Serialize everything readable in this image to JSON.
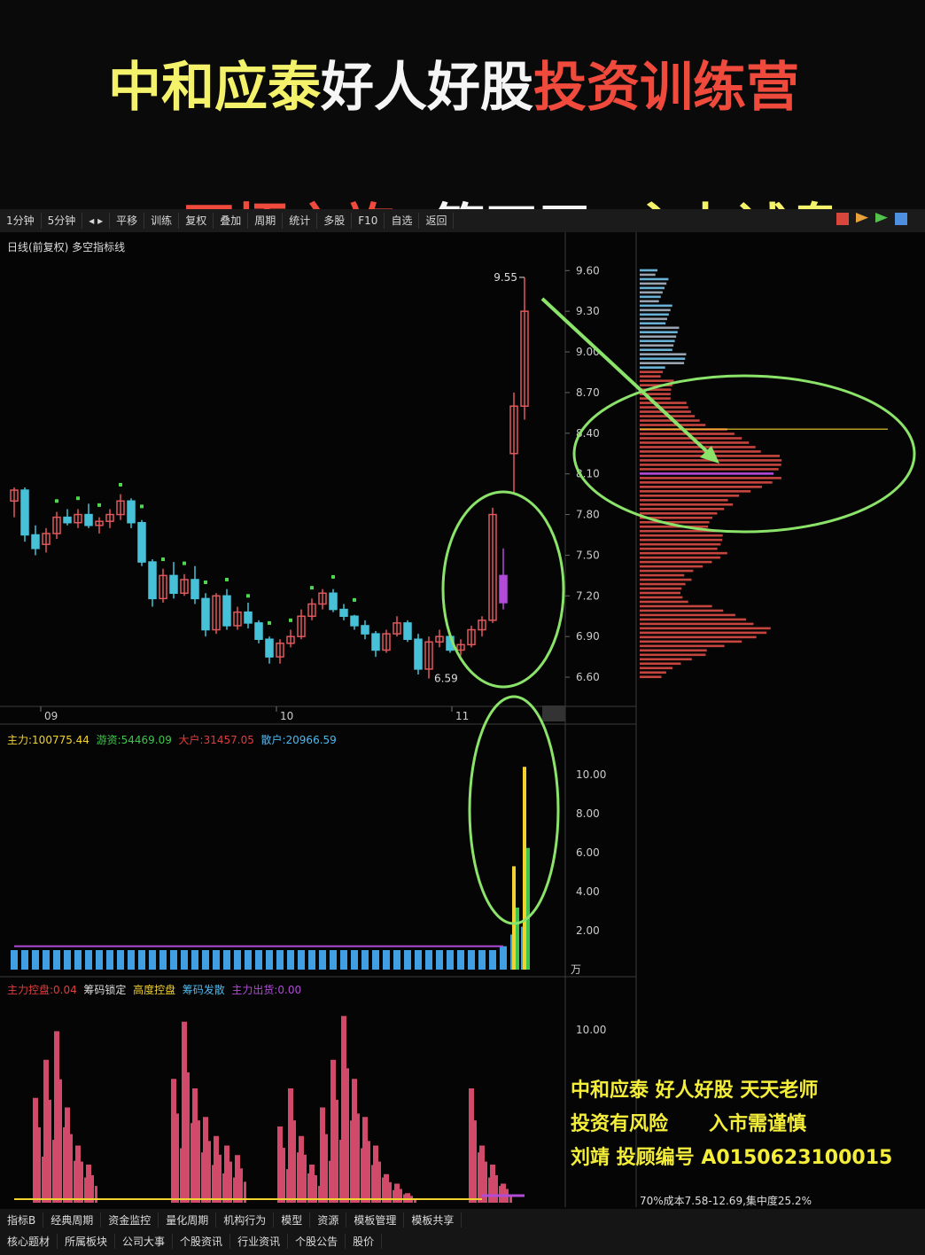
{
  "banner": {
    "line1": [
      {
        "text": "中和应泰",
        "color": "y"
      },
      {
        "text": "好人好股",
        "color": "w"
      },
      {
        "text": "投资训练营",
        "color": "r"
      }
    ],
    "line2": [
      {
        "text": "开悟之旅",
        "color": "r"
      },
      {
        "text": "  第四天  ",
        "color": "w"
      },
      {
        "text": "主力试盘",
        "color": "y"
      }
    ]
  },
  "toolbar": {
    "items": [
      "1分钟",
      "5分钟",
      "◂ ▸",
      "平移",
      "训练",
      "复权",
      "叠加",
      "周期",
      "统计",
      "多股",
      "F10",
      "自选",
      "返回"
    ]
  },
  "main_chart": {
    "title": "日线(前复权) 多空指标线",
    "high_label": "9.55",
    "low_label": "6.59",
    "date_labels": [
      "09",
      "10",
      "11"
    ],
    "price_axis": [
      "9.60",
      "9.30",
      "9.00",
      "8.70",
      "8.40",
      "8.10",
      "7.80",
      "7.50",
      "7.20",
      "6.90",
      "6.60"
    ]
  },
  "fund_panel": {
    "legend": [
      {
        "text": "主力:100775.44",
        "color": "#f2d22e"
      },
      {
        "text": "游资:54469.09",
        "color": "#3ec64a"
      },
      {
        "text": "大户:31457.05",
        "color": "#e23c3c"
      },
      {
        "text": "散户:20966.59",
        "color": "#4fb8ef"
      }
    ],
    "axis": [
      "10.00",
      "8.00",
      "6.00",
      "4.00",
      "2.00"
    ],
    "unit": "万"
  },
  "lower_panel": {
    "legend": [
      {
        "text": "主力控盘:0.04",
        "color": "#e23c3c"
      },
      {
        "text": "筹码锁定",
        "color": "#ddd"
      },
      {
        "text": "高度控盘",
        "color": "#f2d22e"
      },
      {
        "text": "筹码发散",
        "color": "#4fb8ef"
      },
      {
        "text": "主力出货:0.00",
        "color": "#b14bd8"
      }
    ],
    "axis": [
      "10.00"
    ]
  },
  "chip_info": "70%成本7.58-12.69,集中度25.2%",
  "footer": {
    "line1": "中和应泰  好人好股  天天老师",
    "line2": "投资有风险      入市需谨慎",
    "line3": "刘靖 投顾编号 A0150623100015"
  },
  "bottom_tabs_row1": [
    "指标B",
    "经典周期",
    "资金监控",
    "量化周期",
    "机构行为",
    "模型",
    "资源",
    "模板管理",
    "模板共享"
  ],
  "bottom_tabs_row2": [
    "核心题材",
    "所属板块",
    "公司大事",
    "个股资讯",
    "行业资讯",
    "个股公告",
    "股价"
  ],
  "colors": {
    "up": "#e0585c",
    "down": "#46c1d8",
    "support": "#4ed84e",
    "annotation": "#8be36a"
  },
  "chart_data": {
    "type": "candlestick",
    "title": "",
    "ylim": [
      6.45,
      9.7
    ],
    "candles": [
      [
        7.9,
        8.0,
        7.78,
        7.98
      ],
      [
        7.98,
        8.0,
        7.6,
        7.65
      ],
      [
        7.65,
        7.72,
        7.5,
        7.55
      ],
      [
        7.58,
        7.7,
        7.52,
        7.66
      ],
      [
        7.66,
        7.82,
        7.62,
        7.78
      ],
      [
        7.78,
        7.84,
        7.72,
        7.74
      ],
      [
        7.74,
        7.84,
        7.7,
        7.8
      ],
      [
        7.8,
        7.88,
        7.7,
        7.72
      ],
      [
        7.72,
        7.78,
        7.66,
        7.75
      ],
      [
        7.75,
        7.84,
        7.7,
        7.8
      ],
      [
        7.8,
        7.95,
        7.76,
        7.9
      ],
      [
        7.9,
        7.92,
        7.7,
        7.74
      ],
      [
        7.74,
        7.76,
        7.42,
        7.45
      ],
      [
        7.45,
        7.47,
        7.12,
        7.18
      ],
      [
        7.18,
        7.4,
        7.15,
        7.35
      ],
      [
        7.35,
        7.45,
        7.18,
        7.22
      ],
      [
        7.22,
        7.36,
        7.2,
        7.32
      ],
      [
        7.32,
        7.42,
        7.14,
        7.18
      ],
      [
        7.18,
        7.22,
        6.9,
        6.95
      ],
      [
        6.95,
        7.22,
        6.92,
        7.2
      ],
      [
        7.2,
        7.25,
        6.95,
        6.98
      ],
      [
        6.98,
        7.12,
        6.95,
        7.08
      ],
      [
        7.08,
        7.15,
        6.96,
        7.0
      ],
      [
        7.0,
        7.02,
        6.85,
        6.88
      ],
      [
        6.88,
        6.9,
        6.7,
        6.75
      ],
      [
        6.75,
        6.88,
        6.7,
        6.85
      ],
      [
        6.85,
        6.95,
        6.82,
        6.9
      ],
      [
        6.9,
        7.1,
        6.88,
        7.05
      ],
      [
        7.05,
        7.18,
        7.02,
        7.14
      ],
      [
        7.14,
        7.25,
        7.1,
        7.22
      ],
      [
        7.22,
        7.25,
        7.08,
        7.1
      ],
      [
        7.1,
        7.14,
        7.02,
        7.05
      ],
      [
        7.05,
        7.06,
        6.95,
        6.98
      ],
      [
        6.98,
        7.02,
        6.88,
        6.92
      ],
      [
        6.92,
        6.94,
        6.75,
        6.8
      ],
      [
        6.8,
        6.95,
        6.78,
        6.92
      ],
      [
        6.92,
        7.05,
        6.9,
        7.0
      ],
      [
        7.0,
        7.02,
        6.86,
        6.88
      ],
      [
        6.88,
        6.92,
        6.62,
        6.66
      ],
      [
        6.66,
        6.9,
        6.59,
        6.86
      ],
      [
        6.86,
        6.95,
        6.82,
        6.9
      ],
      [
        6.9,
        6.92,
        6.78,
        6.8
      ],
      [
        6.8,
        6.88,
        6.76,
        6.84
      ],
      [
        6.84,
        6.98,
        6.82,
        6.95
      ],
      [
        6.95,
        7.05,
        6.9,
        7.02
      ],
      [
        7.02,
        7.85,
        7.0,
        7.8
      ],
      [
        7.35,
        7.55,
        7.1,
        7.15
      ],
      [
        8.25,
        8.7,
        7.95,
        8.6
      ],
      [
        8.6,
        9.55,
        8.5,
        9.3
      ]
    ],
    "fund_volume": [
      1.0,
      1.0,
      1.0,
      1.0,
      1.0,
      1.0,
      1.0,
      1.0,
      1.0,
      1.0,
      1.0,
      1.0,
      1.0,
      1.0,
      1.0,
      1.0,
      1.0,
      1.0,
      1.0,
      1.0,
      1.0,
      1.0,
      1.0,
      1.0,
      1.0,
      1.0,
      1.0,
      1.0,
      1.0,
      1.0,
      1.0,
      1.0,
      1.0,
      1.0,
      1.0,
      1.0,
      1.0,
      1.0,
      1.0,
      1.0,
      1.0,
      1.0,
      1.0,
      1.0,
      1.0,
      1.0,
      1.2,
      1.8,
      2.2
    ],
    "fund_main": [
      0,
      0,
      0,
      0,
      0,
      0,
      0,
      0,
      0,
      0,
      0,
      0,
      0,
      0,
      0,
      0,
      0,
      0,
      0,
      0,
      0,
      0,
      0,
      0,
      0,
      0,
      0,
      0,
      0,
      0,
      0,
      0,
      0,
      0,
      0,
      0,
      0,
      0,
      0,
      0,
      0,
      0,
      0,
      0,
      0,
      0,
      0,
      5.3,
      10.4
    ],
    "control": [
      0,
      0,
      0.55,
      0.75,
      0.9,
      0.5,
      0.3,
      0.2,
      0,
      0,
      0,
      0,
      0,
      0,
      0,
      0.65,
      0.95,
      0.6,
      0.45,
      0.35,
      0.3,
      0.25,
      0,
      0,
      0,
      0.4,
      0.6,
      0.35,
      0.2,
      0.5,
      0.75,
      0.98,
      0.65,
      0.45,
      0.3,
      0.15,
      0.1,
      0.05,
      0,
      0,
      0,
      0,
      0,
      0.6,
      0.3,
      0.2,
      0.1,
      0,
      0
    ],
    "chip_profile_axis": [
      6.6,
      9.6
    ]
  }
}
